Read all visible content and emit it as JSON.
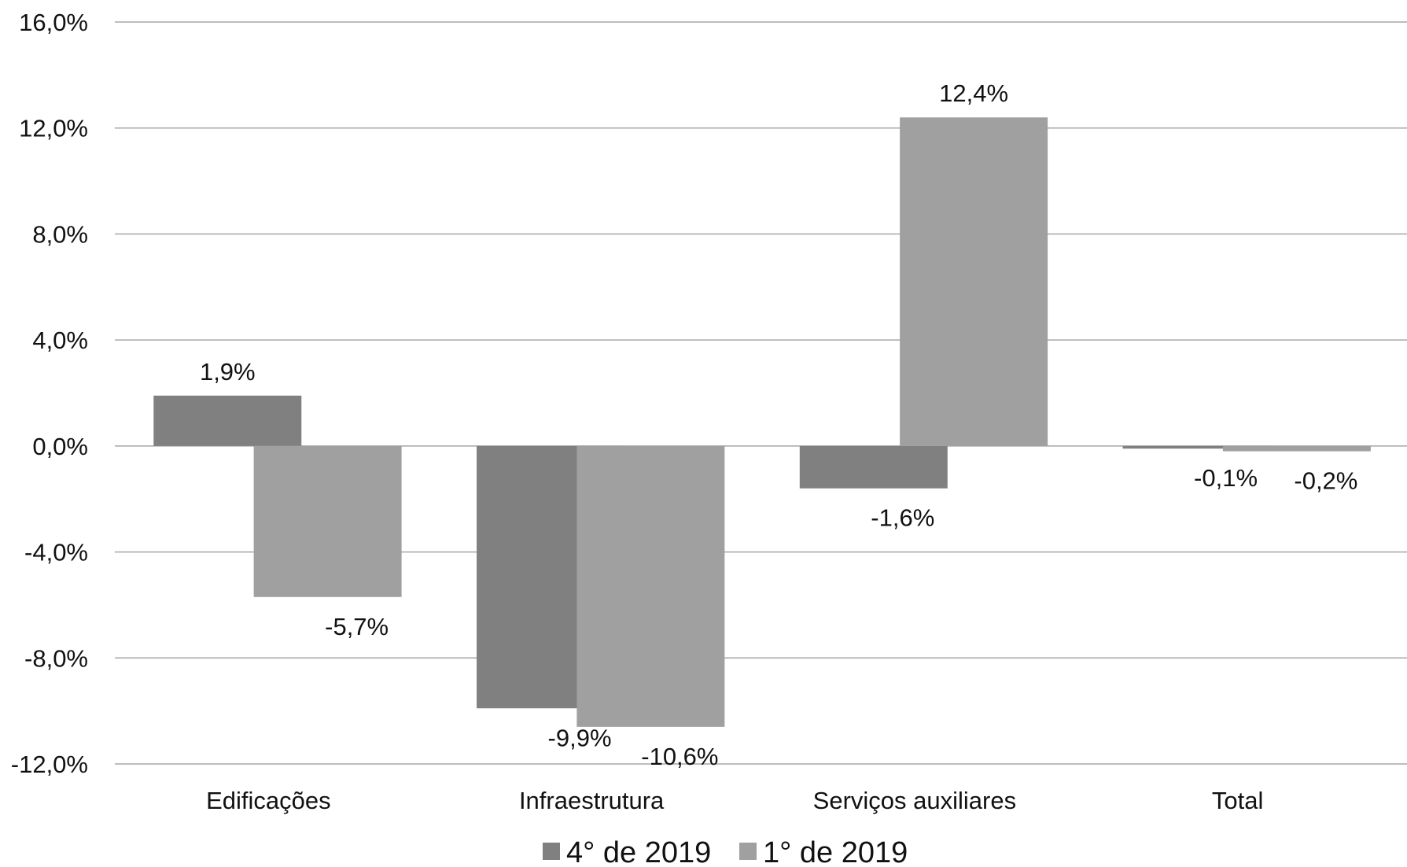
{
  "chart_data": {
    "type": "bar",
    "categories": [
      "Edificações",
      "Infraestrutura",
      "Serviços auxiliares",
      "Total"
    ],
    "series": [
      {
        "name": "4° de 2019",
        "values": [
          1.9,
          -9.9,
          -1.6,
          -0.1
        ],
        "labels": [
          "1,9%",
          "-9,9%",
          "-1,6%",
          "-0,1%"
        ],
        "color": "#808080"
      },
      {
        "name": "1° de 2019",
        "values": [
          -5.7,
          -10.6,
          12.4,
          -0.2
        ],
        "labels": [
          "-5,7%",
          "-10,6%",
          "12,4%",
          "-0,2%"
        ],
        "color": "#a0a0a0"
      }
    ],
    "yticks": [
      16,
      12,
      8,
      4,
      0,
      -4,
      -8,
      -12
    ],
    "ytick_labels": [
      "16,0%",
      "12,0%",
      "8,0%",
      "4,0%",
      "0,0%",
      "-4,0%",
      "-8,0%",
      "-12,0%"
    ],
    "ylim": [
      -12,
      16
    ],
    "title": "",
    "xlabel": "",
    "ylabel": "",
    "grid": true,
    "legend_position": "bottom"
  }
}
